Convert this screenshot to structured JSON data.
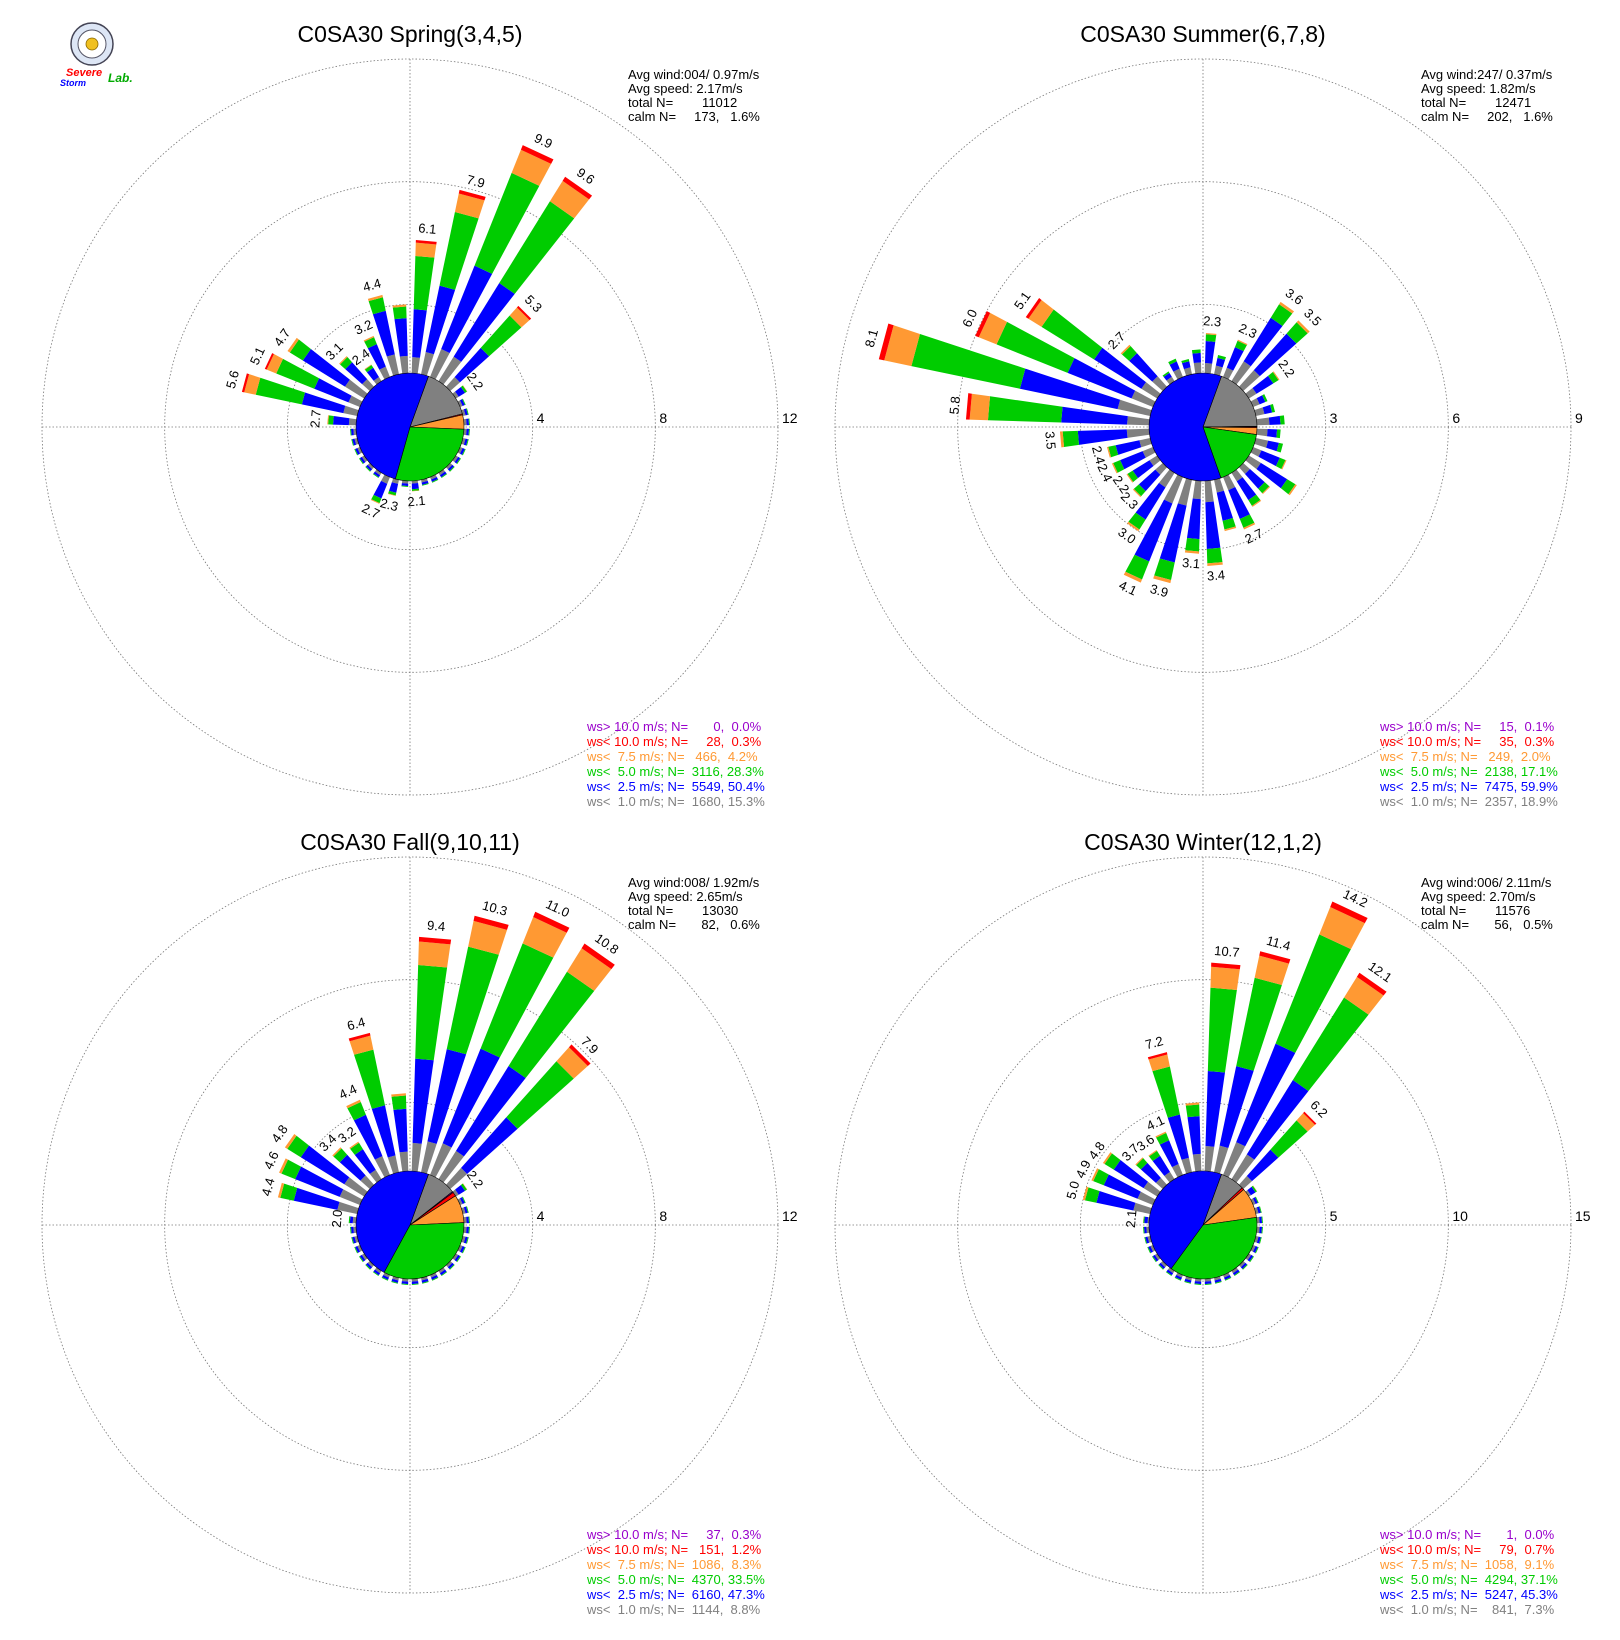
{
  "colors": {
    "ws_gt_10": "#9900cc",
    "ws_lt_10": "#ff0000",
    "ws_lt_7_5": "#ff9933",
    "ws_lt_5": "#00cc00",
    "ws_lt_2_5": "#0000ff",
    "ws_lt_1": "#808080",
    "grid": "#777777"
  },
  "logo": {
    "line1": "Severe",
    "line2": "Storm",
    "line3": "Lab."
  },
  "chart_data": [
    {
      "type": "windrose",
      "title": "C0SA30 Spring(3,4,5)",
      "stats": [
        "Avg wind:004/ 0.97m/s",
        "Avg speed: 2.17m/s",
        "total N=        11012",
        "calm N=     173,   1.6%"
      ],
      "rings": [
        "4",
        "8",
        "12"
      ],
      "rmax": 12,
      "legend": [
        "ws> 10.0 m/s; N=       0,  0.0%",
        "ws< 10.0 m/s; N=     28,  0.3%",
        "ws<  7.5 m/s; N=   466,  4.2%",
        "ws<  5.0 m/s; N=  3116, 28.3%",
        "ws<  2.5 m/s; N=  5549, 50.4%",
        "ws<  1.0 m/s; N=  1680, 15.3%"
      ],
      "pie": [
        15.3,
        50.4,
        28.3,
        4.2,
        0.3,
        0.0
      ],
      "bars": [
        {
          "dir": 5,
          "total": 6.1,
          "label": "6.1"
        },
        {
          "dir": 15,
          "total": 7.9,
          "label": "7.9"
        },
        {
          "dir": 25,
          "total": 9.9,
          "label": "9.9"
        },
        {
          "dir": 35,
          "total": 9.6,
          "label": "9.6"
        },
        {
          "dir": 45,
          "total": 5.3,
          "label": "5.3"
        },
        {
          "dir": 55,
          "total": 2.2,
          "label": "2.2"
        },
        {
          "dir": 65,
          "total": 1.6
        },
        {
          "dir": 75,
          "total": 1.4
        },
        {
          "dir": 85,
          "total": 1.4
        },
        {
          "dir": 95,
          "total": 1.3
        },
        {
          "dir": 105,
          "total": 1.2
        },
        {
          "dir": 115,
          "total": 1.1
        },
        {
          "dir": 125,
          "total": 1.1
        },
        {
          "dir": 135,
          "total": 1.0
        },
        {
          "dir": 145,
          "total": 1.0
        },
        {
          "dir": 155,
          "total": 1.0
        },
        {
          "dir": 165,
          "total": 1.1
        },
        {
          "dir": 175,
          "total": 2.1,
          "label": "2.1"
        },
        {
          "dir": 185,
          "total": 1.6
        },
        {
          "dir": 195,
          "total": 2.3,
          "label": "2.3"
        },
        {
          "dir": 205,
          "total": 2.7,
          "label": "2.7"
        },
        {
          "dir": 215,
          "total": 1.9
        },
        {
          "dir": 225,
          "total": 1.6
        },
        {
          "dir": 235,
          "total": 1.7
        },
        {
          "dir": 245,
          "total": 1.9
        },
        {
          "dir": 255,
          "total": 1.8
        },
        {
          "dir": 265,
          "total": 1.9
        },
        {
          "dir": 275,
          "total": 2.7,
          "label": "2.7"
        },
        {
          "dir": 285,
          "total": 5.6,
          "label": "5.6"
        },
        {
          "dir": 295,
          "total": 5.1,
          "label": "5.1"
        },
        {
          "dir": 305,
          "total": 4.7,
          "label": "4.7"
        },
        {
          "dir": 315,
          "total": 3.1,
          "label": "3.1"
        },
        {
          "dir": 325,
          "total": 2.4,
          "label": "2.4"
        },
        {
          "dir": 335,
          "total": 3.2,
          "label": "3.2"
        },
        {
          "dir": 345,
          "total": 4.4,
          "label": "4.4"
        },
        {
          "dir": 355,
          "total": 4.0
        }
      ]
    },
    {
      "type": "windrose",
      "title": "C0SA30 Summer(6,7,8)",
      "stats": [
        "Avg wind:247/ 0.37m/s",
        "Avg speed: 1.82m/s",
        "total N=        12471",
        "calm N=     202,   1.6%"
      ],
      "rings": [
        "3",
        "6",
        "9"
      ],
      "rmax": 9,
      "legend": [
        "ws> 10.0 m/s; N=     15,  0.1%",
        "ws< 10.0 m/s; N=     35,  0.3%",
        "ws<  7.5 m/s; N=   249,  2.0%",
        "ws<  5.0 m/s; N=  2138, 17.1%",
        "ws<  2.5 m/s; N=  7475, 59.9%",
        "ws<  1.0 m/s; N=  2357, 18.9%"
      ],
      "pie": [
        18.9,
        59.9,
        17.1,
        2.0,
        0.3,
        0.1
      ],
      "bars": [
        {
          "dir": 5,
          "total": 2.3,
          "label": "2.3"
        },
        {
          "dir": 15,
          "total": 1.8
        },
        {
          "dir": 25,
          "total": 2.3,
          "label": "2.3"
        },
        {
          "dir": 35,
          "total": 3.6,
          "label": "3.6"
        },
        {
          "dir": 45,
          "total": 3.5,
          "label": "3.5"
        },
        {
          "dir": 55,
          "total": 2.2,
          "label": "2.2"
        },
        {
          "dir": 65,
          "total": 1.7
        },
        {
          "dir": 75,
          "total": 1.8
        },
        {
          "dir": 85,
          "total": 2.0
        },
        {
          "dir": 95,
          "total": 1.9
        },
        {
          "dir": 105,
          "total": 2.0
        },
        {
          "dir": 115,
          "total": 2.2
        },
        {
          "dir": 125,
          "total": 2.7
        },
        {
          "dir": 135,
          "total": 2.2
        },
        {
          "dir": 145,
          "total": 2.3
        },
        {
          "dir": 155,
          "total": 2.7,
          "label": "2.7"
        },
        {
          "dir": 165,
          "total": 2.6
        },
        {
          "dir": 175,
          "total": 3.4,
          "label": "3.4"
        },
        {
          "dir": 185,
          "total": 3.1,
          "label": "3.1"
        },
        {
          "dir": 195,
          "total": 3.9,
          "label": "3.9"
        },
        {
          "dir": 205,
          "total": 4.1,
          "label": "4.1"
        },
        {
          "dir": 215,
          "total": 3.0,
          "label": "3.0"
        },
        {
          "dir": 225,
          "total": 2.3,
          "label": "2.3"
        },
        {
          "dir": 235,
          "total": 2.2,
          "label": "2.2"
        },
        {
          "dir": 245,
          "total": 2.4,
          "label": "2.4"
        },
        {
          "dir": 255,
          "total": 2.4,
          "label": "2.4"
        },
        {
          "dir": 265,
          "total": 3.5,
          "label": "3.5"
        },
        {
          "dir": 275,
          "total": 5.8,
          "label": "5.8"
        },
        {
          "dir": 285,
          "total": 8.1,
          "label": "8.1"
        },
        {
          "dir": 295,
          "total": 6.0,
          "label": "6.0"
        },
        {
          "dir": 305,
          "total": 5.1,
          "label": "5.1"
        },
        {
          "dir": 315,
          "total": 2.7,
          "label": "2.7"
        },
        {
          "dir": 325,
          "total": 1.6
        },
        {
          "dir": 335,
          "total": 1.8
        },
        {
          "dir": 345,
          "total": 1.7
        },
        {
          "dir": 355,
          "total": 1.9
        }
      ]
    },
    {
      "type": "windrose",
      "title": "C0SA30 Fall(9,10,11)",
      "stats": [
        "Avg wind:008/ 1.92m/s",
        "Avg speed: 2.65m/s",
        "total N=        13030",
        "calm N=       82,   0.6%"
      ],
      "rings": [
        "4",
        "8",
        "12"
      ],
      "rmax": 12,
      "legend": [
        "ws> 10.0 m/s; N=     37,  0.3%",
        "ws< 10.0 m/s; N=   151,  1.2%",
        "ws<  7.5 m/s; N=  1086,  8.3%",
        "ws<  5.0 m/s; N=  4370, 33.5%",
        "ws<  2.5 m/s; N=  6160, 47.3%",
        "ws<  1.0 m/s; N=  1144,  8.8%"
      ],
      "pie": [
        8.8,
        47.3,
        33.5,
        8.3,
        1.2,
        0.3
      ],
      "bars": [
        {
          "dir": 5,
          "total": 9.4,
          "label": "9.4"
        },
        {
          "dir": 15,
          "total": 10.3,
          "label": "10.3"
        },
        {
          "dir": 25,
          "total": 11.0,
          "label": "11.0"
        },
        {
          "dir": 35,
          "total": 10.8,
          "label": "10.8"
        },
        {
          "dir": 45,
          "total": 7.9,
          "label": "7.9"
        },
        {
          "dir": 55,
          "total": 2.2,
          "label": "2.2"
        },
        {
          "dir": 65,
          "total": 1.7
        },
        {
          "dir": 75,
          "total": 1.4
        },
        {
          "dir": 85,
          "total": 1.4
        },
        {
          "dir": 95,
          "total": 1.4
        },
        {
          "dir": 105,
          "total": 1.3
        },
        {
          "dir": 115,
          "total": 1.3
        },
        {
          "dir": 125,
          "total": 1.2
        },
        {
          "dir": 135,
          "total": 1.2
        },
        {
          "dir": 145,
          "total": 1.2
        },
        {
          "dir": 155,
          "total": 1.2
        },
        {
          "dir": 165,
          "total": 1.3
        },
        {
          "dir": 175,
          "total": 1.3
        },
        {
          "dir": 185,
          "total": 1.3
        },
        {
          "dir": 195,
          "total": 1.3
        },
        {
          "dir": 205,
          "total": 1.3
        },
        {
          "dir": 215,
          "total": 1.3
        },
        {
          "dir": 225,
          "total": 1.3
        },
        {
          "dir": 235,
          "total": 1.3
        },
        {
          "dir": 245,
          "total": 1.4
        },
        {
          "dir": 255,
          "total": 1.4
        },
        {
          "dir": 265,
          "total": 1.4
        },
        {
          "dir": 275,
          "total": 2.0,
          "label": "2.0"
        },
        {
          "dir": 285,
          "total": 4.4,
          "label": "4.4"
        },
        {
          "dir": 295,
          "total": 4.6,
          "label": "4.6"
        },
        {
          "dir": 305,
          "total": 4.8,
          "label": "4.8"
        },
        {
          "dir": 315,
          "total": 3.4,
          "label": "3.4"
        },
        {
          "dir": 325,
          "total": 3.2,
          "label": "3.2"
        },
        {
          "dir": 335,
          "total": 4.4,
          "label": "4.4"
        },
        {
          "dir": 345,
          "total": 6.4,
          "label": "6.4"
        },
        {
          "dir": 355,
          "total": 4.3
        }
      ]
    },
    {
      "type": "windrose",
      "title": "C0SA30 Winter(12,1,2)",
      "stats": [
        "Avg wind:006/ 2.11m/s",
        "Avg speed: 2.70m/s",
        "total N=        11576",
        "calm N=       56,   0.5%"
      ],
      "rings": [
        "5",
        "10",
        "15"
      ],
      "rmax": 15,
      "legend": [
        "ws> 10.0 m/s; N=       1,  0.0%",
        "ws< 10.0 m/s; N=     79,  0.7%",
        "ws<  7.5 m/s; N=  1058,  9.1%",
        "ws<  5.0 m/s; N=  4294, 37.1%",
        "ws<  2.5 m/s; N=  5247, 45.3%",
        "ws<  1.0 m/s; N=    841,  7.3%"
      ],
      "pie": [
        7.3,
        45.3,
        37.1,
        9.1,
        0.7,
        0.0
      ],
      "bars": [
        {
          "dir": 5,
          "total": 10.7,
          "label": "10.7"
        },
        {
          "dir": 15,
          "total": 11.4,
          "label": "11.4"
        },
        {
          "dir": 25,
          "total": 14.2,
          "label": "14.2"
        },
        {
          "dir": 35,
          "total": 12.1,
          "label": "12.1"
        },
        {
          "dir": 45,
          "total": 6.2,
          "label": "6.2"
        },
        {
          "dir": 55,
          "total": 2.6
        },
        {
          "dir": 65,
          "total": 2.0
        },
        {
          "dir": 75,
          "total": 1.7
        },
        {
          "dir": 85,
          "total": 1.6
        },
        {
          "dir": 95,
          "total": 1.5
        },
        {
          "dir": 105,
          "total": 1.5
        },
        {
          "dir": 115,
          "total": 1.4
        },
        {
          "dir": 125,
          "total": 1.4
        },
        {
          "dir": 135,
          "total": 1.4
        },
        {
          "dir": 145,
          "total": 1.4
        },
        {
          "dir": 155,
          "total": 1.4
        },
        {
          "dir": 165,
          "total": 1.4
        },
        {
          "dir": 175,
          "total": 1.4
        },
        {
          "dir": 185,
          "total": 1.4
        },
        {
          "dir": 195,
          "total": 1.4
        },
        {
          "dir": 205,
          "total": 1.4
        },
        {
          "dir": 215,
          "total": 1.4
        },
        {
          "dir": 225,
          "total": 1.4
        },
        {
          "dir": 235,
          "total": 1.4
        },
        {
          "dir": 245,
          "total": 1.5
        },
        {
          "dir": 255,
          "total": 1.5
        },
        {
          "dir": 265,
          "total": 1.6
        },
        {
          "dir": 275,
          "total": 2.1,
          "label": "2.1"
        },
        {
          "dir": 285,
          "total": 5.0,
          "label": "5.0"
        },
        {
          "dir": 295,
          "total": 4.9,
          "label": "4.9"
        },
        {
          "dir": 305,
          "total": 4.8,
          "label": "4.8"
        },
        {
          "dir": 315,
          "total": 3.7,
          "label": "3.7"
        },
        {
          "dir": 325,
          "total": 3.6,
          "label": "3.6"
        },
        {
          "dir": 335,
          "total": 4.1,
          "label": "4.1"
        },
        {
          "dir": 345,
          "total": 7.2,
          "label": "7.2"
        },
        {
          "dir": 355,
          "total": 5.0
        }
      ]
    }
  ]
}
